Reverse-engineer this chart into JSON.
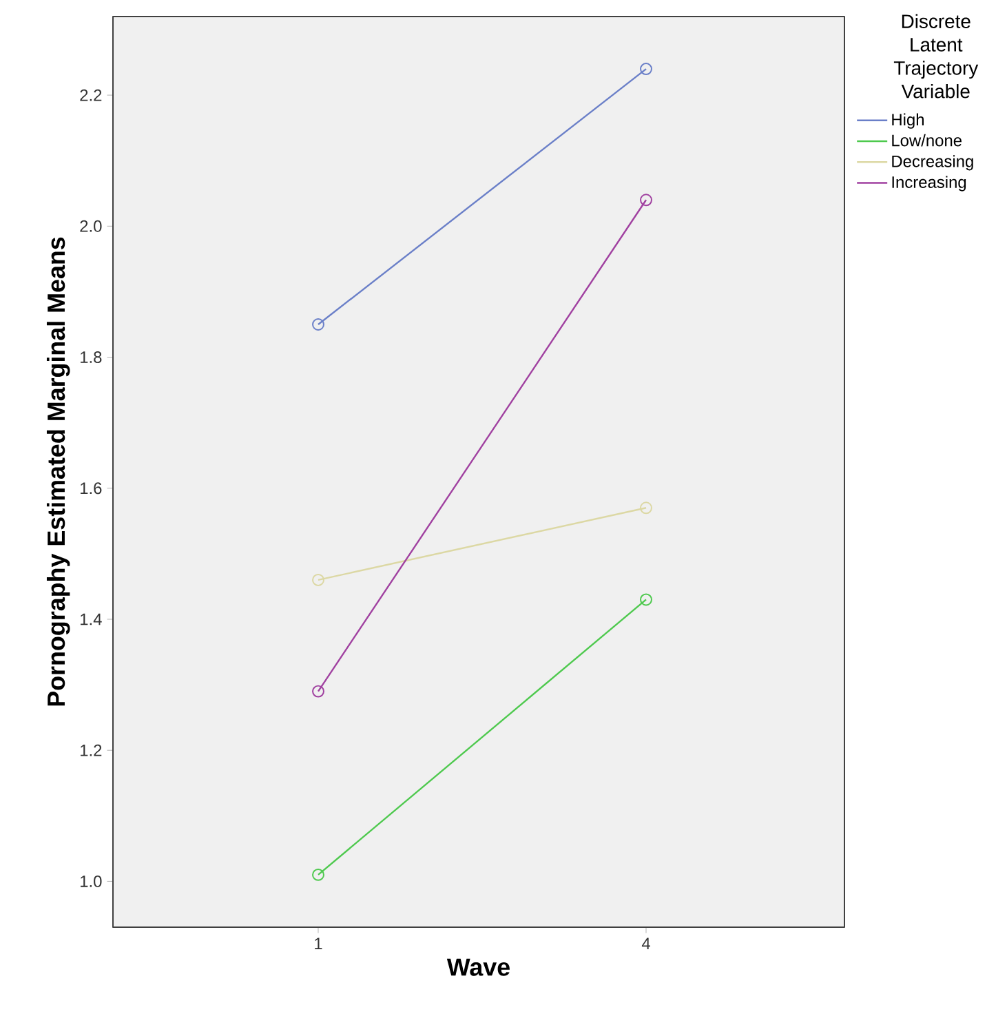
{
  "chart_data": {
    "type": "line",
    "xlabel": "Wave",
    "ylabel": "Pornography Estimated Marginal Means",
    "legend_title": "Discrete Latent Trajectory Variable",
    "categories": [
      "1",
      "4"
    ],
    "ylim": [
      0.93,
      2.32
    ],
    "yticks": [
      {
        "value": 1.0,
        "label": "1.0"
      },
      {
        "value": 1.2,
        "label": "1.2"
      },
      {
        "value": 1.4,
        "label": "1.4"
      },
      {
        "value": 1.6,
        "label": "1.6"
      },
      {
        "value": 1.8,
        "label": "1.8"
      },
      {
        "value": 2.0,
        "label": "2.0"
      },
      {
        "value": 2.2,
        "label": "2.2"
      }
    ],
    "series": [
      {
        "name": "High",
        "color": "#6a7fc8",
        "values": [
          1.85,
          2.24
        ]
      },
      {
        "name": "Low/none",
        "color": "#4ec94e",
        "values": [
          1.01,
          1.43
        ]
      },
      {
        "name": "Decreasing",
        "color": "#dcd8a4",
        "values": [
          1.46,
          1.57
        ]
      },
      {
        "name": "Increasing",
        "color": "#a040a0",
        "values": [
          1.29,
          2.04
        ]
      }
    ],
    "marker": "circle",
    "line_style": "solid",
    "legend": "top right",
    "grid": false
  }
}
